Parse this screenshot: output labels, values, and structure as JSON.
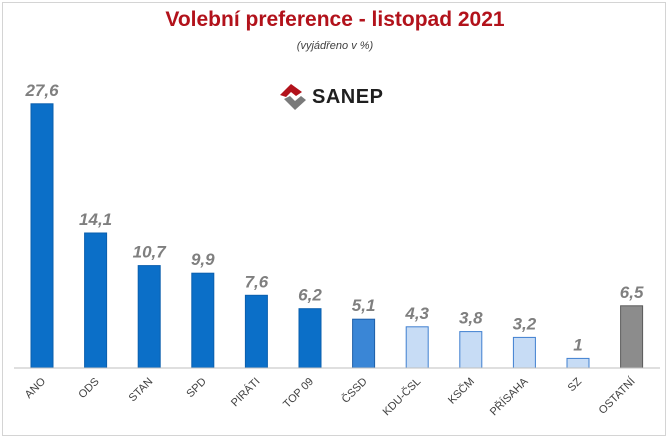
{
  "header": {
    "title": "Volební preference - listopad 2021",
    "subtitle": "(vyjádřeno v %)"
  },
  "logo": {
    "text": "SANEP",
    "icon": "sanep-logo-icon"
  },
  "chart_data": {
    "type": "bar",
    "title": "Volební preference - listopad 2021",
    "subtitle": "(vyjádřeno v %)",
    "categories": [
      "ANO",
      "ODS",
      "STAN",
      "SPD",
      "PIRÁTI",
      "TOP 09",
      "ČSSD",
      "KDU-ČSL",
      "KSČM",
      "PŘÍSAHA",
      "SZ",
      "OSTATNÍ"
    ],
    "values": [
      27.6,
      14.1,
      10.7,
      9.9,
      7.6,
      6.2,
      5.1,
      4.3,
      3.8,
      3.2,
      1,
      6.5
    ],
    "value_labels": [
      "27,6",
      "14,1",
      "10,7",
      "9,9",
      "7,6",
      "6,2",
      "5,1",
      "4,3",
      "3,8",
      "3,2",
      "1",
      "6,5"
    ],
    "bar_styles": [
      "dark",
      "dark",
      "dark",
      "dark",
      "dark",
      "dark",
      "medium",
      "light",
      "light",
      "light",
      "light",
      "gray"
    ],
    "ylim": [
      0,
      28
    ],
    "grid": false,
    "legend": "none",
    "colors": {
      "dark_fill": "#0b6fc8",
      "dark_stroke": "#0a5fae",
      "medium_fill": "#3a86d6",
      "medium_stroke": "#1f5fa8",
      "light_fill": "#c7dcf5",
      "light_stroke": "#3f7fd0",
      "gray_fill": "#8c8c8c",
      "gray_stroke": "#5a5a5a",
      "value_label": "#7f7f7f",
      "category_label": "#404040",
      "axis": "#bfbfbf",
      "title": "#b2121b"
    }
  }
}
